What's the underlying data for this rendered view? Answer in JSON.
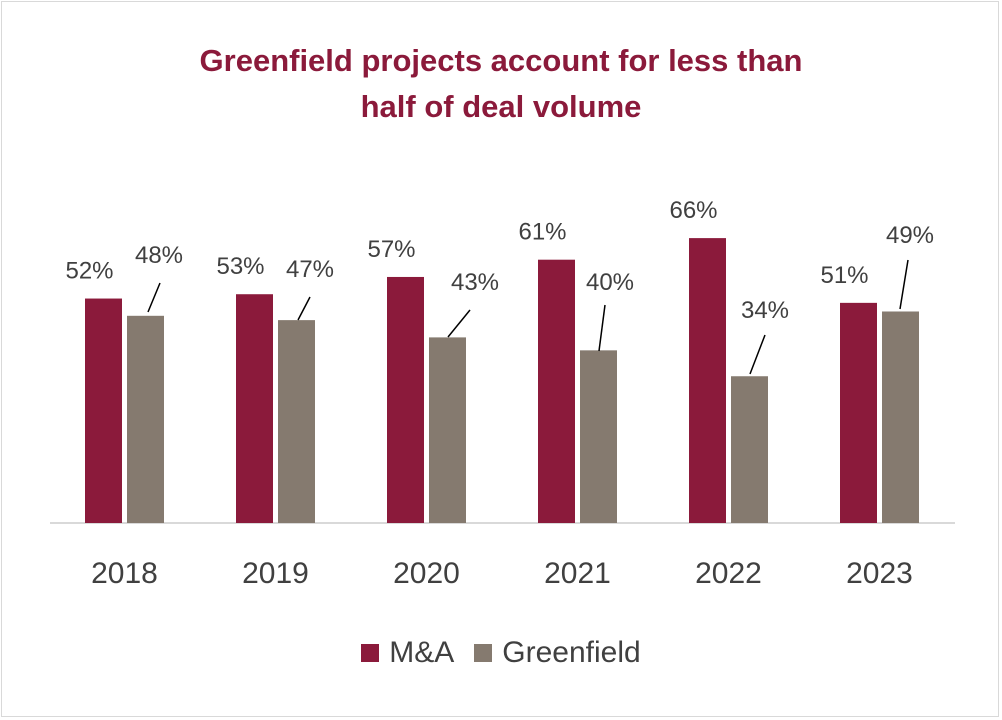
{
  "chart_data": {
    "type": "bar",
    "title_lines": [
      "Greenfield projects account for less than",
      "half of deal volume"
    ],
    "categories": [
      "2018",
      "2019",
      "2020",
      "2021",
      "2022",
      "2023"
    ],
    "series": [
      {
        "name": "M&A",
        "values": [
          52,
          53,
          57,
          61,
          66,
          51
        ],
        "labels": [
          "52%",
          "53%",
          "57%",
          "61%",
          "66%",
          "51%"
        ],
        "color": "#8b1a3b"
      },
      {
        "name": "Greenfield",
        "values": [
          48,
          47,
          43,
          40,
          34,
          49
        ],
        "labels": [
          "48%",
          "47%",
          "43%",
          "40%",
          "34%",
          "49%"
        ],
        "color": "#857a6f"
      }
    ],
    "ylim": [
      0,
      100
    ],
    "grid": false,
    "legend_position": "bottom"
  },
  "colors": {
    "title": "#8b1a3b",
    "axis": "#d9d9d9",
    "text": "#404040"
  }
}
